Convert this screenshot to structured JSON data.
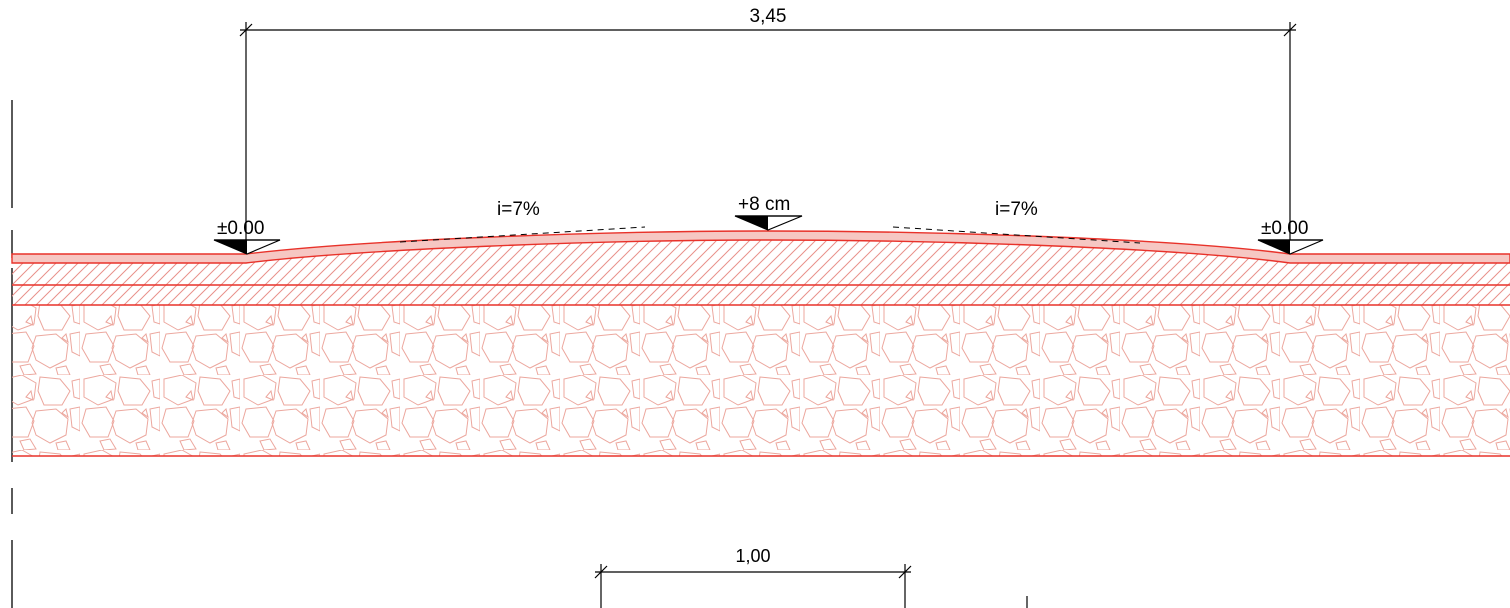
{
  "dimensions": {
    "top": "3,45",
    "bottom": "1,00"
  },
  "levels": {
    "left": "±0.00",
    "center": "+8 cm",
    "right": "±0.00"
  },
  "slopes": {
    "left": "i=7%",
    "right": "i=7%"
  },
  "colors": {
    "section_line": "#e8322a",
    "wearing_fill": "#f6c7c3",
    "hatch": "#e8908a",
    "stone": "#eca79e",
    "ink": "#000000"
  }
}
